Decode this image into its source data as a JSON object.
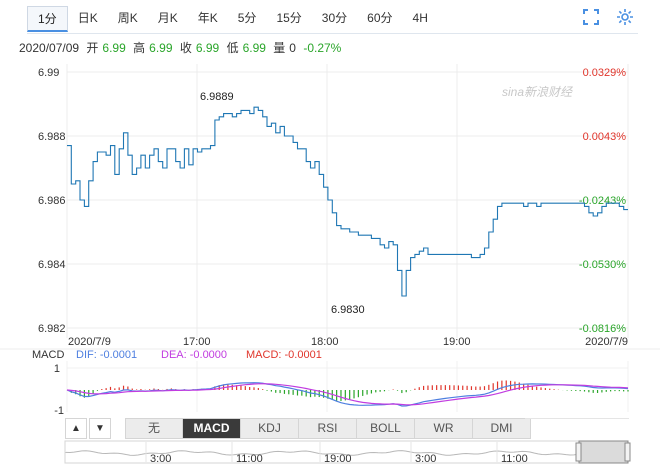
{
  "period_tabs": [
    "1分",
    "日K",
    "周K",
    "月K",
    "年K",
    "5分",
    "15分",
    "30分",
    "60分",
    "4H"
  ],
  "active_tab": "1分",
  "quote": {
    "date": "2020/07/09",
    "open_label": "开",
    "open": "6.99",
    "high_label": "高",
    "high": "6.99",
    "close_label": "收",
    "close": "6.99",
    "low_label": "低",
    "low": "6.99",
    "volume_label": "量",
    "volume": "0",
    "change": "-0.27%"
  },
  "watermark": "sina新浪财经",
  "colors": {
    "line": "#1f77b4",
    "up": "#e0352b",
    "down": "#2aa52a",
    "dif": "#4e7fe0",
    "dea": "#c13ce0",
    "tab_accent": "#4a90e2"
  },
  "chart_data": {
    "type": "line",
    "y_ticks_left": [
      "6.99",
      "6.988",
      "6.986",
      "6.984",
      "6.982"
    ],
    "y_ticks_right": [
      "0.0329%",
      "0.0043%",
      "-0.0243%",
      "-0.0530%",
      "-0.0816%"
    ],
    "ylim": [
      6.982,
      6.99
    ],
    "x_labels": [
      "2020/7/9",
      "17:00",
      "18:00",
      "19:00",
      "2020/7/9"
    ],
    "annotations": {
      "high": "6.9889",
      "low": "6.9830"
    },
    "series": [
      {
        "values": [
          6.9877,
          6.9865,
          6.9866,
          6.986,
          6.9858,
          6.9866,
          6.9872,
          6.9875,
          6.9875,
          6.9874,
          6.9877,
          6.9868,
          6.9876,
          6.9881,
          6.9874,
          6.9868,
          6.987,
          6.9874,
          6.987,
          6.9874,
          6.9876,
          6.9872,
          6.987,
          6.9876,
          6.9876,
          6.9872,
          6.987,
          6.9876,
          6.9871,
          6.9876,
          6.9875,
          6.9876,
          6.9876,
          6.9877,
          6.9885,
          6.9886,
          6.9887,
          6.9887,
          6.9886,
          6.9887,
          6.9888,
          6.9888,
          6.9887,
          6.9889,
          6.9888,
          6.9886,
          6.9883,
          6.9884,
          6.9881,
          6.9883,
          6.988,
          6.988,
          6.9878,
          6.9876,
          6.9876,
          6.9872,
          6.987,
          6.9872,
          6.9868,
          6.9864,
          6.986,
          6.9856,
          6.9852,
          6.9851,
          6.9851,
          6.985,
          6.985,
          6.9849,
          6.9849,
          6.9849,
          6.9848,
          6.9848,
          6.9846,
          6.9845,
          6.9847,
          6.9846,
          6.9838,
          6.983,
          6.9838,
          6.9842,
          6.9843,
          6.9844,
          6.9845,
          6.9843,
          6.9843,
          6.9843,
          6.9843,
          6.9843,
          6.9843,
          6.9843,
          6.9843,
          6.9843,
          6.9843,
          6.9842,
          6.9842,
          6.9843,
          6.9845,
          6.985,
          6.9854,
          6.9858,
          6.9859,
          6.9859,
          6.9859,
          6.9859,
          6.9859,
          6.9858,
          6.9859,
          6.9859,
          6.9858,
          6.9859,
          6.9859,
          6.9859,
          6.9859,
          6.9859,
          6.9859,
          6.9859,
          6.9859,
          6.9859,
          6.9859,
          6.9858,
          6.9856,
          6.9855,
          6.9856,
          6.9858,
          6.9859,
          6.9859,
          6.9859,
          6.9858,
          6.9857,
          6.9857
        ]
      }
    ]
  },
  "macd": {
    "label": "MACD",
    "dif_label": "DIF: -0.0001",
    "dea_label": "DEA: -0.0000",
    "macd_label": "MACD: -0.0001",
    "y_ticks": [
      "1",
      "-1"
    ]
  },
  "indicator_tabs": [
    "无",
    "MACD",
    "KDJ",
    "RSI",
    "BOLL",
    "WR",
    "DMI"
  ],
  "active_indicator": "MACD",
  "arrow_up": "▲",
  "arrow_down": "▼",
  "navigator_labels": [
    "3:00",
    "11:00",
    "19:00",
    "3:00",
    "11:00"
  ]
}
